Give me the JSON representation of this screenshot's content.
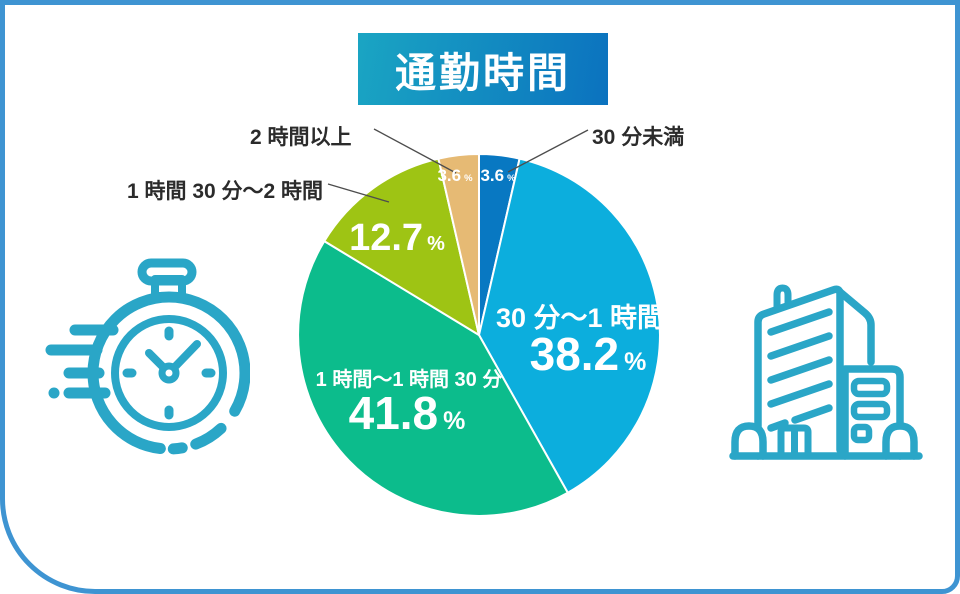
{
  "title": "通勤時間",
  "chart_data": {
    "type": "pie",
    "title": "通勤時間",
    "unit": "%",
    "direction": "clockwise",
    "start_angle": "12-o-clock",
    "slices": [
      {
        "id": "under-30min",
        "label": "30 分未満",
        "value": 3.6,
        "display": "3.6",
        "color": "#0878c2"
      },
      {
        "id": "30min-to-1h",
        "label": "30 分〜1 時間",
        "value": 38.2,
        "display": "38.2",
        "color": "#0caedd"
      },
      {
        "id": "1h-to-1h30m",
        "label": "1 時間〜1 時間 30 分",
        "value": 41.8,
        "display": "41.8",
        "color": "#0cbc8c"
      },
      {
        "id": "1h30m-to-2h",
        "label": "1 時間 30 分〜2 時間",
        "value": 12.7,
        "display": "12.7",
        "color": "#9ec414"
      },
      {
        "id": "over-2h",
        "label": "2 時間以上",
        "value": 3.6,
        "display": "3.6",
        "color": "#e6ba74"
      }
    ]
  },
  "icons": {
    "left": "speeding-stopwatch-icon",
    "right": "office-building-icon",
    "color": "#2aa6c7"
  },
  "frame": {
    "border_color": "#3e94d2"
  },
  "title_box": {
    "gradient_from": "#1aa5c3",
    "gradient_to": "#0b72bf"
  }
}
